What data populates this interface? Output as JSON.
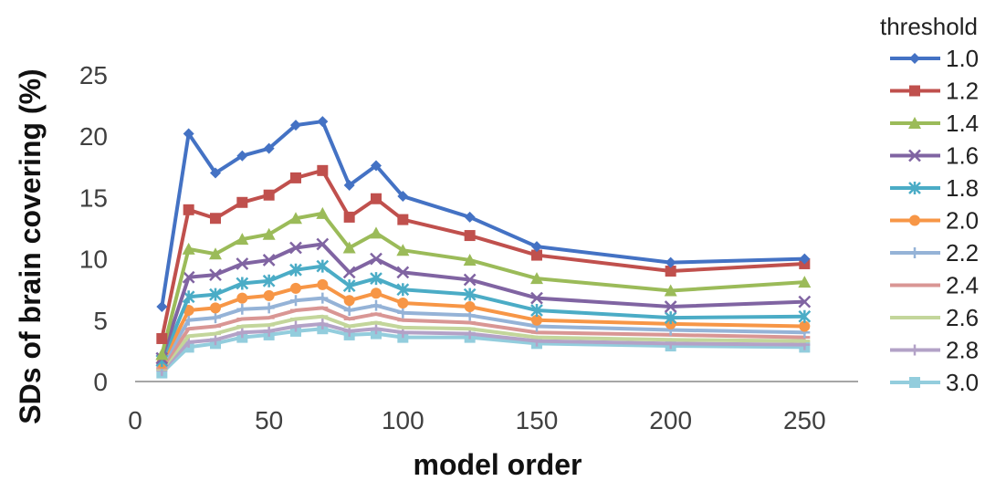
{
  "chart_data": {
    "type": "line",
    "xlabel": "model order",
    "ylabel": "SDs of brain covering (%)",
    "xlim": [
      0,
      270
    ],
    "ylim": [
      0,
      25
    ],
    "xticks": [
      0,
      50,
      100,
      150,
      200,
      250
    ],
    "yticks": [
      0,
      5,
      10,
      15,
      20,
      25
    ],
    "grid": false,
    "legend_title": "threshold",
    "legend_position": "right",
    "x": [
      10,
      20,
      30,
      40,
      50,
      60,
      70,
      80,
      90,
      100,
      125,
      150,
      200,
      250
    ],
    "series": [
      {
        "name": "1.0",
        "color": "#4472C4",
        "marker": "diamond",
        "values": [
          6.1,
          20.2,
          17.0,
          18.4,
          19.0,
          20.9,
          21.2,
          16.0,
          17.6,
          15.1,
          13.4,
          11.0,
          9.7,
          10.0
        ]
      },
      {
        "name": "1.2",
        "color": "#C0504D",
        "marker": "square",
        "values": [
          3.5,
          14.0,
          13.3,
          14.6,
          15.2,
          16.6,
          17.2,
          13.4,
          14.9,
          13.2,
          11.9,
          10.3,
          9.0,
          9.6
        ]
      },
      {
        "name": "1.4",
        "color": "#9BBB59",
        "marker": "triangle",
        "values": [
          2.2,
          10.8,
          10.4,
          11.6,
          12.0,
          13.3,
          13.7,
          10.9,
          12.1,
          10.7,
          9.9,
          8.4,
          7.4,
          8.1
        ]
      },
      {
        "name": "1.6",
        "color": "#8064A2",
        "marker": "x",
        "values": [
          1.9,
          8.5,
          8.7,
          9.6,
          9.9,
          10.9,
          11.2,
          8.9,
          10.0,
          8.9,
          8.3,
          6.8,
          6.1,
          6.5
        ]
      },
      {
        "name": "1.8",
        "color": "#4BACC6",
        "marker": "star",
        "values": [
          1.7,
          6.9,
          7.1,
          8.0,
          8.2,
          9.1,
          9.4,
          7.8,
          8.4,
          7.5,
          7.1,
          5.8,
          5.2,
          5.3
        ]
      },
      {
        "name": "2.0",
        "color": "#F79646",
        "marker": "circle",
        "values": [
          1.5,
          5.8,
          6.0,
          6.8,
          7.0,
          7.6,
          7.9,
          6.6,
          7.2,
          6.4,
          6.1,
          5.0,
          4.7,
          4.5
        ]
      },
      {
        "name": "2.2",
        "color": "#95B3D7",
        "marker": "plus",
        "values": [
          1.3,
          5.0,
          5.2,
          5.9,
          6.0,
          6.6,
          6.8,
          5.8,
          6.2,
          5.6,
          5.4,
          4.5,
          4.2,
          4.0
        ]
      },
      {
        "name": "2.4",
        "color": "#D99694",
        "marker": "dash",
        "values": [
          1.1,
          4.3,
          4.5,
          5.1,
          5.2,
          5.8,
          6.0,
          5.1,
          5.5,
          5.0,
          4.8,
          4.0,
          3.8,
          3.6
        ]
      },
      {
        "name": "2.6",
        "color": "#C3D69B",
        "marker": "dash",
        "values": [
          1.0,
          3.7,
          3.9,
          4.5,
          4.6,
          5.1,
          5.3,
          4.5,
          4.8,
          4.4,
          4.3,
          3.6,
          3.4,
          3.3
        ]
      },
      {
        "name": "2.8",
        "color": "#B3A2C7",
        "marker": "plus",
        "values": [
          0.9,
          3.2,
          3.4,
          4.0,
          4.1,
          4.5,
          4.7,
          4.1,
          4.3,
          4.0,
          3.9,
          3.3,
          3.1,
          3.0
        ]
      },
      {
        "name": "3.0",
        "color": "#93CDDD",
        "marker": "square",
        "values": [
          0.7,
          2.8,
          3.1,
          3.6,
          3.8,
          4.1,
          4.3,
          3.8,
          3.9,
          3.6,
          3.6,
          3.1,
          2.9,
          2.8
        ]
      }
    ]
  }
}
